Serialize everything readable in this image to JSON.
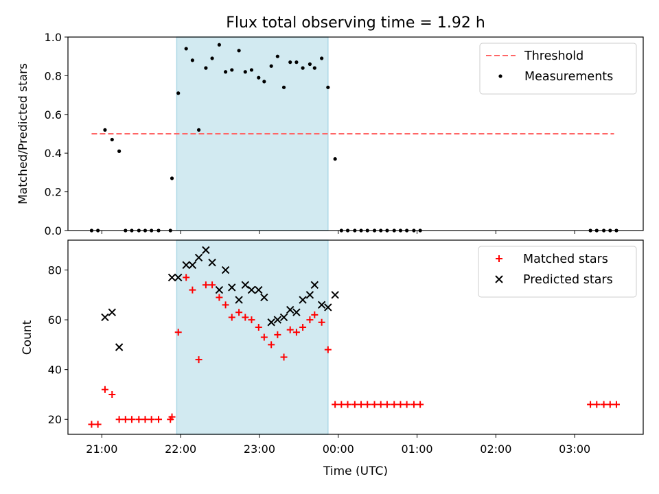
{
  "chart_data": {
    "title": "Flux total observing time = 1.92 h",
    "xlabel": "Time (UTC)",
    "x_unit": "hours since 00:00 UTC on the first day",
    "x_range": [
      20.57,
      27.87
    ],
    "x_ticks": [
      "21:00",
      "22:00",
      "23:00",
      "00:00",
      "01:00",
      "02:00",
      "03:00"
    ],
    "highlight_band": {
      "start": 21.95,
      "end": 23.87,
      "color": "#add8e6"
    },
    "panels": [
      {
        "type": "scatter",
        "ylabel": "Matched/Predicted stars",
        "ylim": [
          0,
          1.0
        ],
        "y_ticks": [
          "0.0",
          "0.2",
          "0.4",
          "0.6",
          "0.8",
          "1.0"
        ],
        "legend_position": "top-right",
        "threshold": {
          "name": "Threshold",
          "value": 0.5,
          "x_start": 20.87,
          "x_end": 27.5,
          "color": "#ff6666",
          "style": "dashed"
        },
        "series": [
          {
            "name": "Measurements",
            "marker": "dot",
            "color": "#000000",
            "points": [
              [
                20.87,
                0
              ],
              [
                20.95,
                0
              ],
              [
                21.04,
                0.52
              ],
              [
                21.13,
                0.47
              ],
              [
                21.22,
                0.41
              ],
              [
                21.3,
                0
              ],
              [
                21.38,
                0
              ],
              [
                21.47,
                0
              ],
              [
                21.55,
                0
              ],
              [
                21.63,
                0
              ],
              [
                21.72,
                0
              ],
              [
                21.87,
                0
              ],
              [
                21.89,
                0.27
              ],
              [
                21.97,
                0.71
              ],
              [
                22.07,
                0.94
              ],
              [
                22.15,
                0.88
              ],
              [
                22.23,
                0.52
              ],
              [
                22.32,
                0.84
              ],
              [
                22.4,
                0.89
              ],
              [
                22.49,
                0.96
              ],
              [
                22.57,
                0.82
              ],
              [
                22.65,
                0.83
              ],
              [
                22.74,
                0.93
              ],
              [
                22.82,
                0.82
              ],
              [
                22.9,
                0.83
              ],
              [
                22.99,
                0.79
              ],
              [
                23.06,
                0.77
              ],
              [
                23.15,
                0.85
              ],
              [
                23.23,
                0.9
              ],
              [
                23.31,
                0.74
              ],
              [
                23.39,
                0.87
              ],
              [
                23.47,
                0.87
              ],
              [
                23.55,
                0.84
              ],
              [
                23.64,
                0.86
              ],
              [
                23.7,
                0.84
              ],
              [
                23.79,
                0.89
              ],
              [
                23.87,
                0.74
              ],
              [
                23.96,
                0.37
              ],
              [
                24.04,
                0
              ],
              [
                24.12,
                0
              ],
              [
                24.21,
                0
              ],
              [
                24.29,
                0
              ],
              [
                24.37,
                0
              ],
              [
                24.46,
                0
              ],
              [
                24.54,
                0
              ],
              [
                24.62,
                0
              ],
              [
                24.71,
                0
              ],
              [
                24.79,
                0
              ],
              [
                24.87,
                0
              ],
              [
                24.96,
                0
              ],
              [
                25.04,
                0
              ],
              [
                27.2,
                0
              ],
              [
                27.28,
                0
              ],
              [
                27.37,
                0
              ],
              [
                27.45,
                0
              ],
              [
                27.53,
                0
              ]
            ]
          }
        ]
      },
      {
        "type": "scatter",
        "ylabel": "Count",
        "ylim": [
          14,
          92
        ],
        "y_ticks": [
          "20",
          "40",
          "60",
          "80"
        ],
        "legend_position": "top-right",
        "series": [
          {
            "name": "Matched stars",
            "marker": "plus",
            "color": "#ff0000",
            "points": [
              [
                20.87,
                18
              ],
              [
                20.95,
                18
              ],
              [
                21.04,
                32
              ],
              [
                21.13,
                30
              ],
              [
                21.22,
                20
              ],
              [
                21.3,
                20
              ],
              [
                21.38,
                20
              ],
              [
                21.47,
                20
              ],
              [
                21.55,
                20
              ],
              [
                21.63,
                20
              ],
              [
                21.72,
                20
              ],
              [
                21.87,
                20
              ],
              [
                21.89,
                21
              ],
              [
                21.97,
                55
              ],
              [
                22.07,
                77
              ],
              [
                22.15,
                72
              ],
              [
                22.23,
                44
              ],
              [
                22.32,
                74
              ],
              [
                22.4,
                74
              ],
              [
                22.49,
                69
              ],
              [
                22.57,
                66
              ],
              [
                22.65,
                61
              ],
              [
                22.74,
                63
              ],
              [
                22.82,
                61
              ],
              [
                22.9,
                60
              ],
              [
                22.99,
                57
              ],
              [
                23.06,
                53
              ],
              [
                23.15,
                50
              ],
              [
                23.23,
                54
              ],
              [
                23.31,
                45
              ],
              [
                23.39,
                56
              ],
              [
                23.47,
                55
              ],
              [
                23.55,
                57
              ],
              [
                23.64,
                60
              ],
              [
                23.7,
                62
              ],
              [
                23.79,
                59
              ],
              [
                23.87,
                48
              ],
              [
                23.96,
                26
              ],
              [
                24.04,
                26
              ],
              [
                24.12,
                26
              ],
              [
                24.21,
                26
              ],
              [
                24.29,
                26
              ],
              [
                24.37,
                26
              ],
              [
                24.46,
                26
              ],
              [
                24.54,
                26
              ],
              [
                24.62,
                26
              ],
              [
                24.71,
                26
              ],
              [
                24.79,
                26
              ],
              [
                24.87,
                26
              ],
              [
                24.96,
                26
              ],
              [
                25.04,
                26
              ],
              [
                27.2,
                26
              ],
              [
                27.28,
                26
              ],
              [
                27.37,
                26
              ],
              [
                27.45,
                26
              ],
              [
                27.53,
                26
              ]
            ]
          },
          {
            "name": "Predicted stars",
            "marker": "x",
            "color": "#000000",
            "points": [
              [
                21.04,
                61
              ],
              [
                21.13,
                63
              ],
              [
                21.22,
                49
              ],
              [
                21.89,
                77
              ],
              [
                21.97,
                77
              ],
              [
                22.07,
                82
              ],
              [
                22.15,
                82
              ],
              [
                22.23,
                85
              ],
              [
                22.32,
                88
              ],
              [
                22.4,
                83
              ],
              [
                22.49,
                72
              ],
              [
                22.57,
                80
              ],
              [
                22.65,
                73
              ],
              [
                22.74,
                68
              ],
              [
                22.82,
                74
              ],
              [
                22.9,
                72
              ],
              [
                22.99,
                72
              ],
              [
                23.06,
                69
              ],
              [
                23.15,
                59
              ],
              [
                23.23,
                60
              ],
              [
                23.31,
                61
              ],
              [
                23.39,
                64
              ],
              [
                23.47,
                63
              ],
              [
                23.55,
                68
              ],
              [
                23.64,
                70
              ],
              [
                23.7,
                74
              ],
              [
                23.79,
                66
              ],
              [
                23.87,
                65
              ],
              [
                23.96,
                70
              ]
            ]
          }
        ]
      }
    ]
  }
}
